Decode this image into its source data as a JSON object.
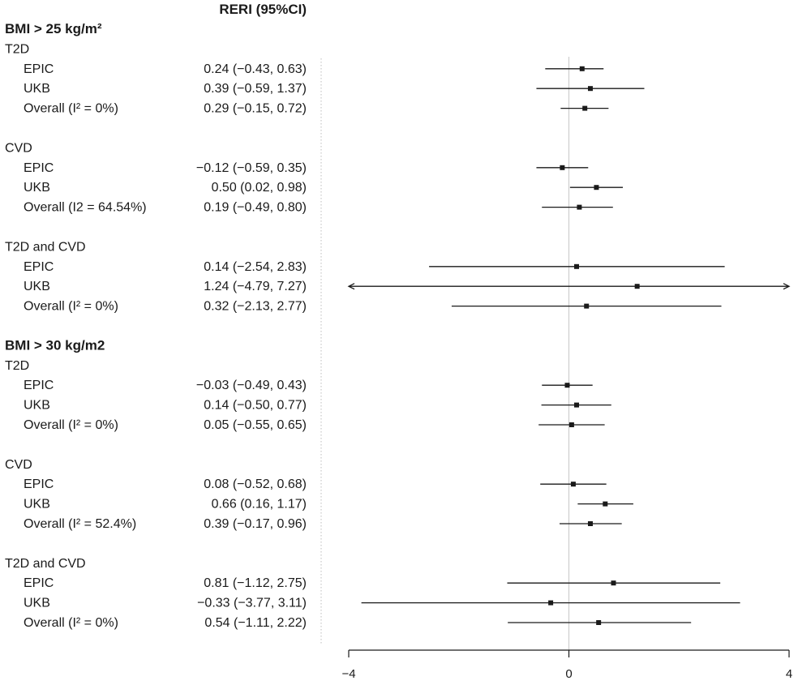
{
  "chart_data": {
    "type": "forest",
    "column_header": "RERI (95%CI)",
    "xlim": [
      -4,
      4
    ],
    "x_ticks": [
      {
        "value": -4,
        "label": "−4"
      },
      {
        "value": 0,
        "label": "0"
      },
      {
        "value": 4,
        "label": "4"
      }
    ],
    "reference_line": 0,
    "rows": [
      {
        "kind": "header",
        "label": "BMI > 25 kg/m²"
      },
      {
        "kind": "group",
        "label": "T2D"
      },
      {
        "kind": "study",
        "label": "EPIC",
        "ci_text": "0.24 (−0.43, 0.63)",
        "est": 0.24,
        "lo": -0.43,
        "hi": 0.63
      },
      {
        "kind": "study",
        "label": "UKB",
        "ci_text": "0.39 (−0.59, 1.37)",
        "est": 0.39,
        "lo": -0.59,
        "hi": 1.37
      },
      {
        "kind": "study",
        "label": "Overall (I² = 0%)",
        "ci_text": "0.29 (−0.15, 0.72)",
        "est": 0.29,
        "lo": -0.15,
        "hi": 0.72
      },
      {
        "kind": "blank"
      },
      {
        "kind": "group",
        "label": "CVD"
      },
      {
        "kind": "study",
        "label": "EPIC",
        "ci_text": "−0.12 (−0.59, 0.35)",
        "est": -0.12,
        "lo": -0.59,
        "hi": 0.35
      },
      {
        "kind": "study",
        "label": "UKB",
        "ci_text": "0.50 (0.02, 0.98)",
        "est": 0.5,
        "lo": 0.02,
        "hi": 0.98
      },
      {
        "kind": "study",
        "label": "Overall (I2 = 64.54%)",
        "ci_text": "0.19 (−0.49, 0.80)",
        "est": 0.19,
        "lo": -0.49,
        "hi": 0.8
      },
      {
        "kind": "blank"
      },
      {
        "kind": "group",
        "label": "T2D and CVD"
      },
      {
        "kind": "study",
        "label": "EPIC",
        "ci_text": "0.14 (−2.54, 2.83)",
        "est": 0.14,
        "lo": -2.54,
        "hi": 2.83
      },
      {
        "kind": "study",
        "label": "UKB",
        "ci_text": "1.24 (−4.79, 7.27)",
        "est": 1.24,
        "lo": -4.79,
        "hi": 7.27
      },
      {
        "kind": "study",
        "label": "Overall (I² = 0%)",
        "ci_text": "0.32 (−2.13, 2.77)",
        "est": 0.32,
        "lo": -2.13,
        "hi": 2.77
      },
      {
        "kind": "blank"
      },
      {
        "kind": "header",
        "label": "BMI > 30 kg/m2"
      },
      {
        "kind": "group",
        "label": "T2D"
      },
      {
        "kind": "study",
        "label": "EPIC",
        "ci_text": "−0.03 (−0.49, 0.43)",
        "est": -0.03,
        "lo": -0.49,
        "hi": 0.43
      },
      {
        "kind": "study",
        "label": "UKB",
        "ci_text": "0.14 (−0.50, 0.77)",
        "est": 0.14,
        "lo": -0.5,
        "hi": 0.77
      },
      {
        "kind": "study",
        "label": "Overall (I² = 0%)",
        "ci_text": "0.05 (−0.55, 0.65)",
        "est": 0.05,
        "lo": -0.55,
        "hi": 0.65
      },
      {
        "kind": "blank"
      },
      {
        "kind": "group",
        "label": "CVD"
      },
      {
        "kind": "study",
        "label": "EPIC",
        "ci_text": "0.08 (−0.52, 0.68)",
        "est": 0.08,
        "lo": -0.52,
        "hi": 0.68
      },
      {
        "kind": "study",
        "label": "UKB",
        "ci_text": "0.66 (0.16, 1.17)",
        "est": 0.66,
        "lo": 0.16,
        "hi": 1.17
      },
      {
        "kind": "study",
        "label": "Overall (I² = 52.4%)",
        "ci_text": "0.39 (−0.17, 0.96)",
        "est": 0.39,
        "lo": -0.17,
        "hi": 0.96
      },
      {
        "kind": "blank"
      },
      {
        "kind": "group",
        "label": "T2D and CVD"
      },
      {
        "kind": "study",
        "label": "EPIC",
        "ci_text": "0.81 (−1.12, 2.75)",
        "est": 0.81,
        "lo": -1.12,
        "hi": 2.75
      },
      {
        "kind": "study",
        "label": "UKB",
        "ci_text": "−0.33 (−3.77, 3.11)",
        "est": -0.33,
        "lo": -3.77,
        "hi": 3.11
      },
      {
        "kind": "study",
        "label": "Overall (I² = 0%)",
        "ci_text": "0.54 (−1.11, 2.22)",
        "est": 0.54,
        "lo": -1.11,
        "hi": 2.22
      }
    ],
    "colors": {
      "ink": "#1a1a1a",
      "reference": "#c8c8c8",
      "divider": "#bdbdbd"
    }
  }
}
